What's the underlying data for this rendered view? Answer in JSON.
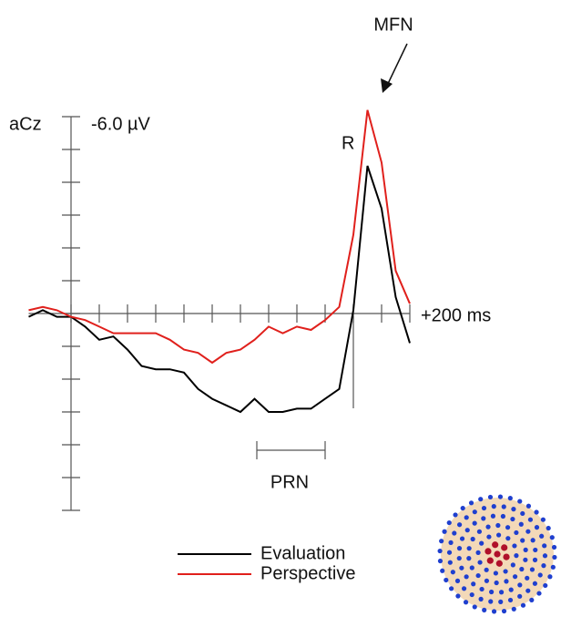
{
  "chart_data": {
    "type": "line",
    "channel_label": "aCz",
    "y_top_label": "-6.0 µV",
    "x_end_label": "+200 ms",
    "annotations": [
      "MFN",
      "R",
      "PRN"
    ],
    "x": [
      -1150,
      -1100,
      -1050,
      -1000,
      -950,
      -900,
      -850,
      -800,
      -750,
      -700,
      -650,
      -600,
      -550,
      -500,
      -450,
      -400,
      -350,
      -300,
      -250,
      -200,
      -150,
      -100,
      -50,
      0,
      50,
      100,
      150,
      200
    ],
    "series": [
      {
        "name": "Evaluation",
        "color": "#000000",
        "values": [
          0.1,
          -0.1,
          0.1,
          0.1,
          0.4,
          0.8,
          0.7,
          1.1,
          1.6,
          1.7,
          1.7,
          1.8,
          2.3,
          2.6,
          2.8,
          3.0,
          2.6,
          3.0,
          3.0,
          2.9,
          2.9,
          2.6,
          2.3,
          -0.1,
          -4.5,
          -3.2,
          -0.5,
          0.9
        ]
      },
      {
        "name": "Perspective",
        "color": "#e0201c",
        "values": [
          -0.1,
          -0.2,
          -0.1,
          0.1,
          0.2,
          0.4,
          0.6,
          0.6,
          0.6,
          0.6,
          0.8,
          1.1,
          1.2,
          1.5,
          1.2,
          1.1,
          0.8,
          0.4,
          0.6,
          0.4,
          0.5,
          0.2,
          -0.2,
          -2.4,
          -6.2,
          -4.6,
          -1.3,
          -0.3
        ]
      }
    ],
    "xlim": [
      -1150,
      200
    ],
    "xticks": [
      -1000,
      -900,
      -800,
      -700,
      -600,
      -500,
      -400,
      -300,
      -200,
      -100,
      0,
      100,
      200
    ],
    "ylim": [
      6,
      -6
    ],
    "yticks": [
      -6,
      -5,
      -4,
      -3,
      -2,
      -1,
      0,
      1,
      2,
      3,
      4,
      5,
      6
    ]
  }
}
